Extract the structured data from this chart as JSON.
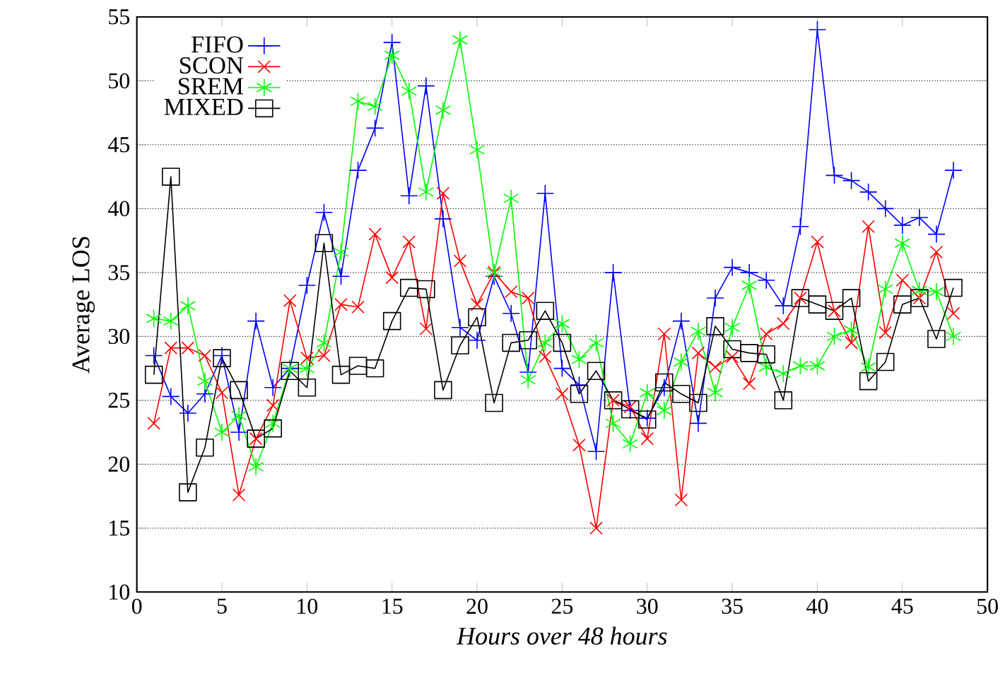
{
  "chart_data": {
    "type": "line",
    "xlabel": "Hours over 48 hours",
    "ylabel": "Average LOS",
    "x": [
      1,
      2,
      3,
      4,
      5,
      6,
      7,
      8,
      9,
      10,
      11,
      12,
      13,
      14,
      15,
      16,
      17,
      18,
      19,
      20,
      21,
      22,
      23,
      24,
      25,
      26,
      27,
      28,
      29,
      30,
      31,
      32,
      33,
      34,
      35,
      36,
      37,
      38,
      39,
      40,
      41,
      42,
      43,
      44,
      45,
      46,
      47,
      48
    ],
    "series": [
      {
        "name": "FIFO",
        "color": "#0000ff",
        "marker": "plus",
        "values": [
          28.5,
          25.3,
          24,
          25.5,
          28.5,
          22.5,
          31.2,
          26,
          27.5,
          34,
          39.7,
          34.7,
          43,
          46.3,
          53,
          41,
          49.6,
          39.2,
          30.7,
          29.7,
          34.7,
          31.8,
          27.2,
          41.2,
          27.5,
          26.2,
          21,
          35,
          24.2,
          23.6,
          26,
          31.2,
          23.2,
          33,
          35.4,
          35,
          34.4,
          32.4,
          38.6,
          54,
          42.6,
          42.2,
          41.3,
          40,
          38.7,
          39.3,
          38,
          43
        ]
      },
      {
        "name": "SCON",
        "color": "#ff0000",
        "marker": "cross",
        "values": [
          23.2,
          29.1,
          29.1,
          28.5,
          25.6,
          17.6,
          22,
          24.6,
          32.8,
          28.3,
          28.5,
          32.5,
          32.3,
          38,
          34.6,
          37.4,
          30.6,
          41.2,
          35.9,
          32.5,
          35,
          33.5,
          33,
          28.4,
          25.5,
          21.5,
          15,
          25,
          24.5,
          22,
          30.2,
          17.2,
          28.7,
          27.6,
          28.4,
          26.3,
          30.2,
          31,
          33,
          37.4,
          32,
          29.5,
          38.6,
          30.3,
          34.4,
          33,
          36.6,
          31.8
        ]
      },
      {
        "name": "SREM",
        "color": "#00ff00",
        "marker": "cross",
        "values": [
          31.4,
          31.2,
          32.4,
          26.5,
          22.5,
          23.8,
          19.8,
          23.2,
          27.5,
          27.5,
          29.5,
          36.6,
          48.4,
          48,
          52,
          49.2,
          41.3,
          47.7,
          53.2,
          44.6,
          35,
          40.8,
          26.6,
          29.5,
          31,
          28.2,
          29.5,
          23.2,
          21.6,
          25.6,
          24.2,
          28,
          30.4,
          25.6,
          30.7,
          34,
          27.6,
          27.1,
          27.7,
          27.7,
          30,
          30.5,
          27.6,
          33.7,
          37.3,
          33.6,
          33.5,
          30
        ]
      },
      {
        "name": "MIXED",
        "color": "#000000",
        "marker": "square",
        "values": [
          27,
          42.5,
          17.8,
          21.3,
          28.3,
          25.8,
          22,
          22.8,
          27.3,
          26,
          37.3,
          27,
          27.7,
          27.5,
          31.2,
          33.8,
          33.7,
          25.8,
          29.3,
          31.5,
          24.8,
          29.5,
          29.7,
          32,
          29.5,
          25.5,
          27.3,
          25,
          24.3,
          23.5,
          26.4,
          25.5,
          24.8,
          30.8,
          29,
          28.7,
          28.6,
          25,
          33,
          32.5,
          32,
          33,
          26.5,
          28,
          32.5,
          33,
          29.8,
          33.8
        ]
      }
    ],
    "xlim": [
      0,
      50
    ],
    "ylim": [
      10,
      55
    ],
    "xticks": [
      0,
      5,
      10,
      15,
      20,
      25,
      30,
      35,
      40,
      45,
      50
    ],
    "yticks": [
      10,
      15,
      20,
      25,
      30,
      35,
      40,
      45,
      50,
      55
    ],
    "grid": "y",
    "legend": "top left",
    "line_style": "solid"
  }
}
